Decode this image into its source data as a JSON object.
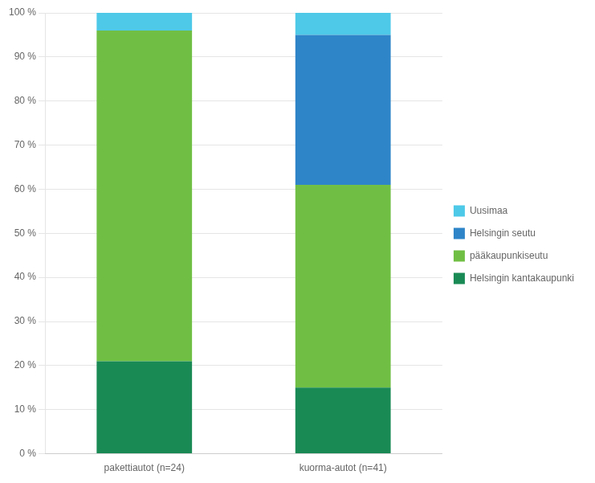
{
  "chart_data": {
    "type": "bar",
    "stacked": true,
    "categories": [
      "pakettiautot (n=24)",
      "kuorma-autot (n=41)"
    ],
    "series": [
      {
        "name": "Helsingin kantakaupunki",
        "color": "#1a8a55",
        "values": [
          21,
          15
        ]
      },
      {
        "name": "pääkaupunkiseutu",
        "color": "#70bf44",
        "values": [
          75,
          46
        ]
      },
      {
        "name": "Helsingin seutu",
        "color": "#2e85c8",
        "values": [
          0,
          34
        ]
      },
      {
        "name": "Uusimaa",
        "color": "#4ec9e8",
        "values": [
          4,
          5
        ]
      }
    ],
    "ylim": [
      0,
      100
    ],
    "yticks": [
      {
        "value": 0,
        "label": "0 %"
      },
      {
        "value": 10,
        "label": "10 %"
      },
      {
        "value": 20,
        "label": "20 %"
      },
      {
        "value": 30,
        "label": "30 %"
      },
      {
        "value": 40,
        "label": "40 %"
      },
      {
        "value": 50,
        "label": "50 %"
      },
      {
        "value": 60,
        "label": "60 %"
      },
      {
        "value": 70,
        "label": "70 %"
      },
      {
        "value": 80,
        "label": "80 %"
      },
      {
        "value": 90,
        "label": "90 %"
      },
      {
        "value": 100,
        "label": "100 %"
      }
    ],
    "grid": true,
    "legend": "right"
  }
}
